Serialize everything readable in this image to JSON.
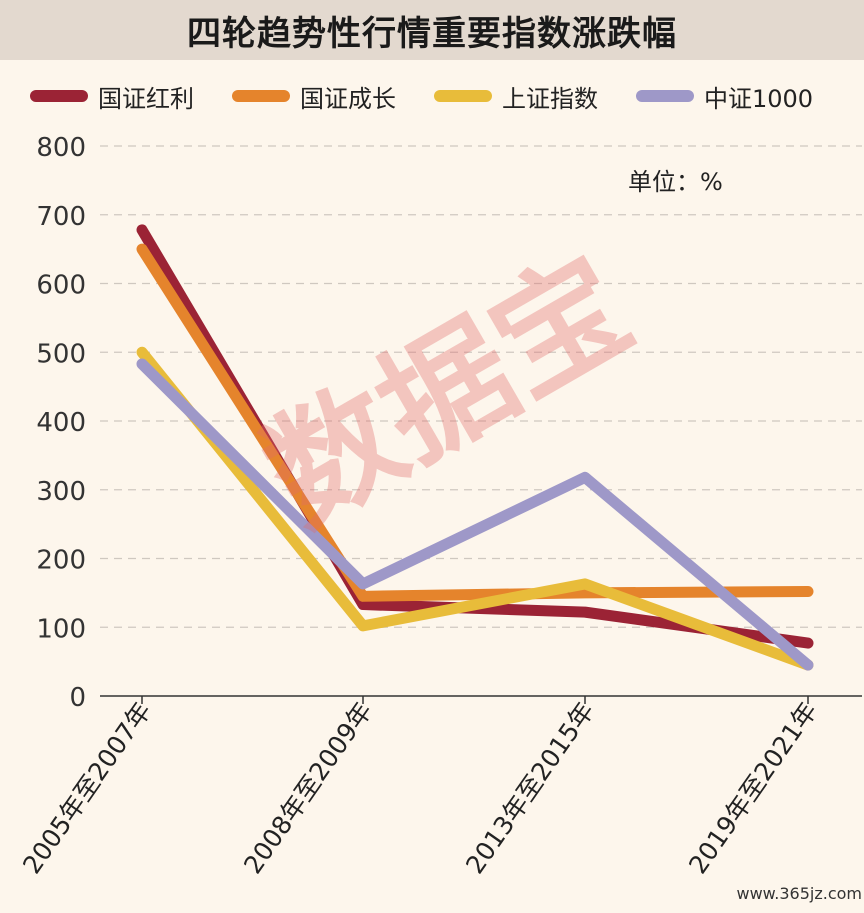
{
  "chart_data": {
    "type": "line",
    "title": "四轮趋势性行情重要指数涨跌幅",
    "unit_label": "单位：%",
    "categories": [
      "2005年至2007年",
      "2008年至2009年",
      "2013年至2015年",
      "2019年至2021年"
    ],
    "ylim": [
      0,
      800
    ],
    "yticks": [
      0,
      100,
      200,
      300,
      400,
      500,
      600,
      700,
      800
    ],
    "grid": true,
    "legend_position": "top",
    "series": [
      {
        "name": "国证红利",
        "color": "#9b2335",
        "values": [
          678,
          133,
          122,
          77
        ]
      },
      {
        "name": "国证成长",
        "color": "#e5842c",
        "values": [
          650,
          145,
          150,
          152
        ]
      },
      {
        "name": "上证指数",
        "color": "#e8bc3a",
        "values": [
          500,
          102,
          163,
          45
        ]
      },
      {
        "name": "中证1000",
        "color": "#9e98c8",
        "values": [
          483,
          163,
          318,
          45
        ]
      }
    ],
    "watermark_text": "数据宝"
  },
  "footer": {
    "site": "www.365jz.com"
  }
}
